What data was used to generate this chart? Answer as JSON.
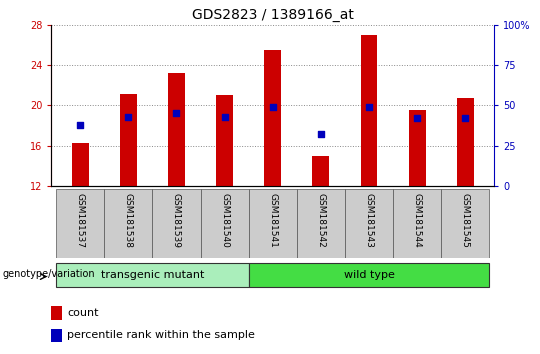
{
  "title": "GDS2823 / 1389166_at",
  "samples": [
    "GSM181537",
    "GSM181538",
    "GSM181539",
    "GSM181540",
    "GSM181541",
    "GSM181542",
    "GSM181543",
    "GSM181544",
    "GSM181545"
  ],
  "bar_values": [
    16.3,
    21.1,
    23.2,
    21.0,
    25.5,
    15.0,
    27.0,
    19.5,
    20.7
  ],
  "percentile_values": [
    18.0,
    18.8,
    19.2,
    18.8,
    19.8,
    17.2,
    19.8,
    18.7,
    18.7
  ],
  "bar_bottom": 12,
  "left_ylim": [
    12,
    28
  ],
  "right_ylim": [
    0,
    100
  ],
  "left_yticks": [
    12,
    16,
    20,
    24,
    28
  ],
  "right_yticks": [
    0,
    25,
    50,
    75,
    100
  ],
  "right_yticklabels": [
    "0",
    "25",
    "50",
    "75",
    "100%"
  ],
  "bar_color": "#CC0000",
  "dot_color": "#0000BB",
  "bar_width": 0.35,
  "group_labels": [
    "transgenic mutant",
    "wild type"
  ],
  "group_ranges": [
    [
      0,
      4
    ],
    [
      4,
      9
    ]
  ],
  "group_color_light": "#AAEEBB",
  "group_color_dark": "#44DD44",
  "genotype_label": "genotype/variation",
  "legend_count_label": "count",
  "legend_percentile_label": "percentile rank within the sample",
  "grid_color": "#888888",
  "tick_label_color_left": "#CC0000",
  "tick_label_color_right": "#0000BB",
  "label_box_color": "#CCCCCC",
  "title_fontsize": 10,
  "tick_fontsize": 7,
  "legend_fontsize": 8,
  "group_fontsize": 8,
  "sample_fontsize": 6.5
}
